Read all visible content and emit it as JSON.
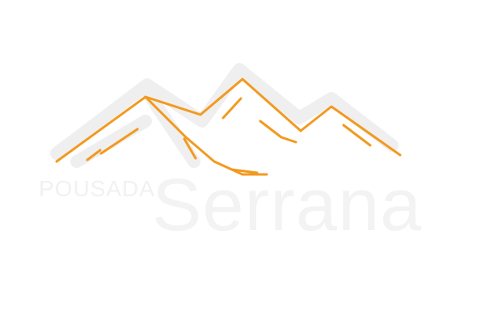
{
  "logo": {
    "word_small": "POUSADA",
    "word_large": "Serrana",
    "icon": "mountain-range-icon"
  },
  "colors": {
    "background": "#ffffff",
    "accent_orange": "#f29a1f",
    "shadow_gray": "#f0f0f0",
    "text_gray": "#f1f1f1"
  }
}
